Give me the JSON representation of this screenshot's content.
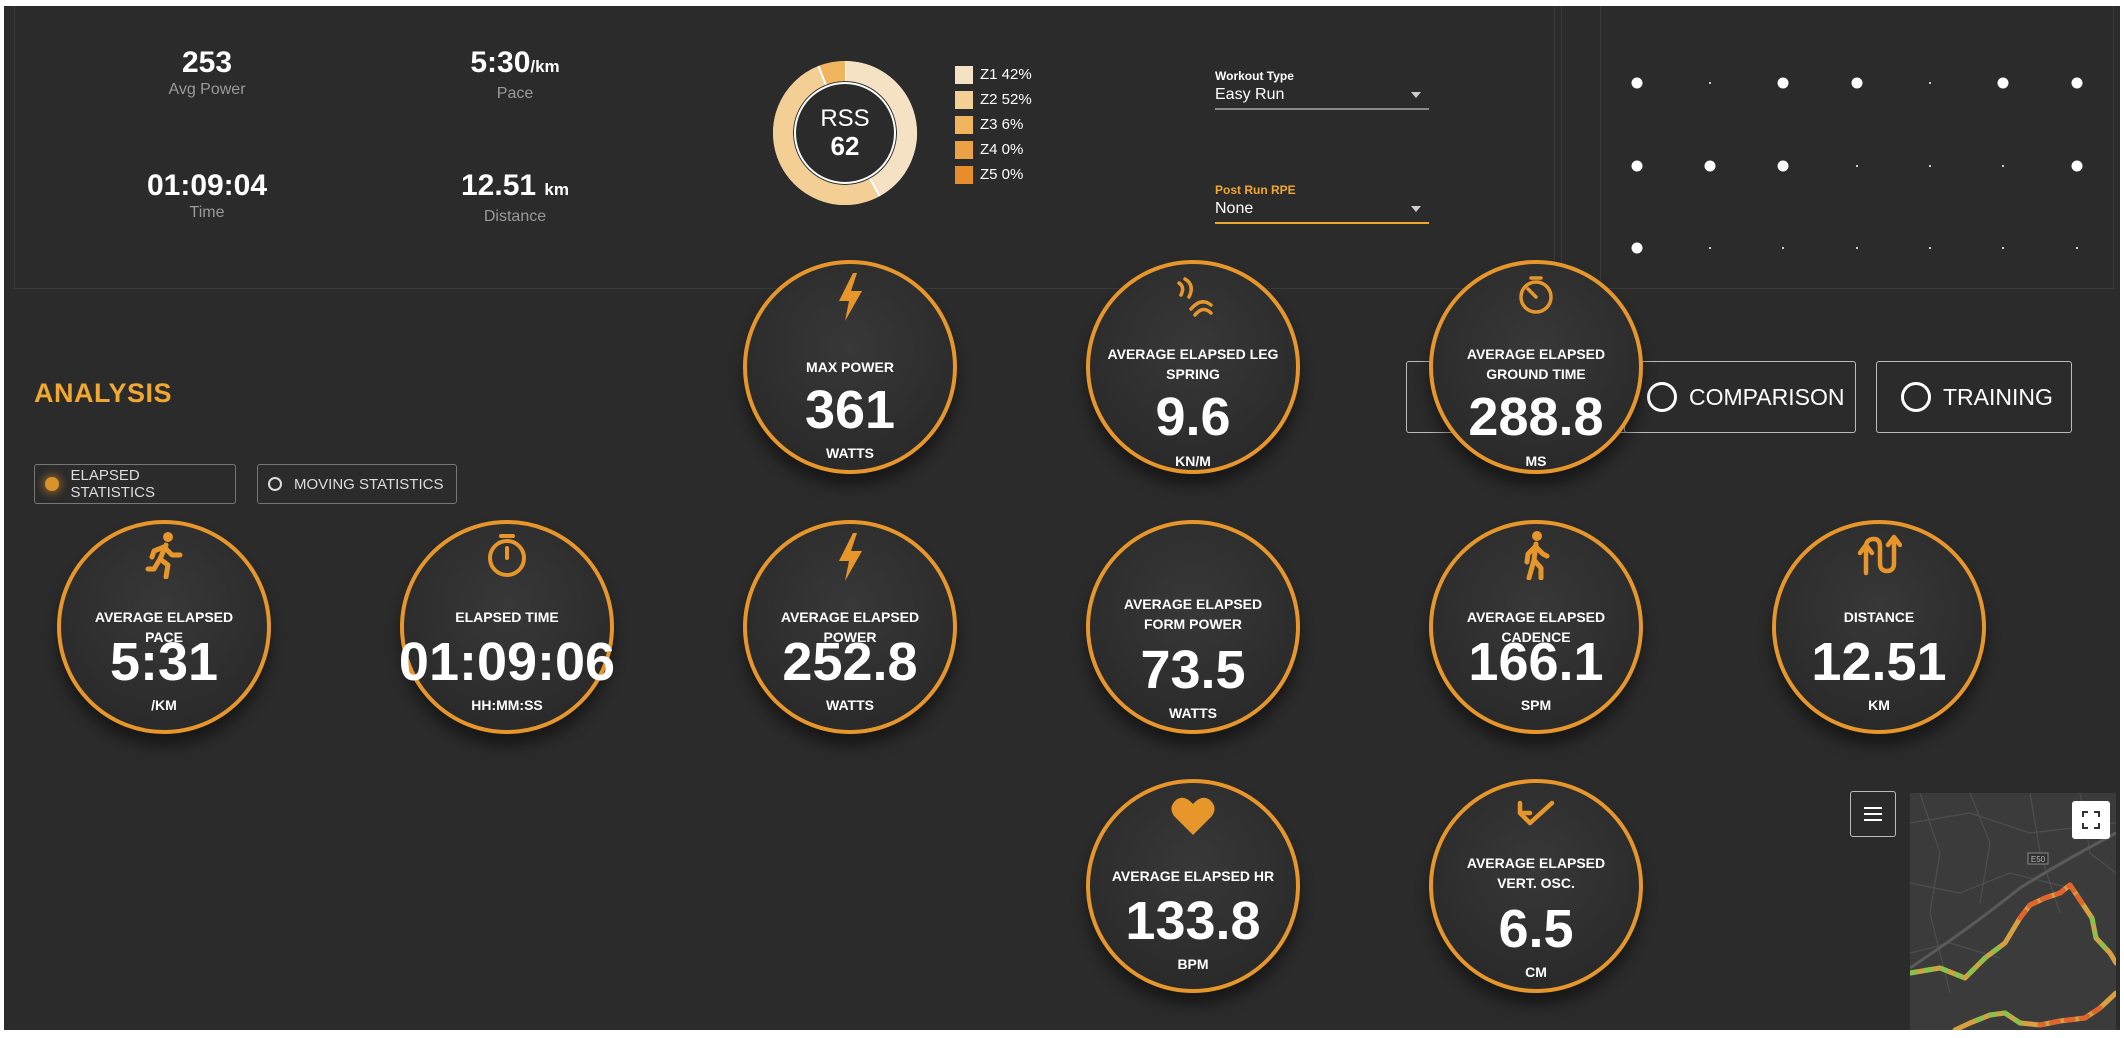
{
  "summary": {
    "avg_power": {
      "value": "253",
      "label": "Avg Power"
    },
    "pace": {
      "value": "5:30",
      "unit": "/km",
      "label": "Pace"
    },
    "time": {
      "value": "01:09:04",
      "label": "Time"
    },
    "distance": {
      "value": "12.51",
      "unit": "km",
      "label": "Distance"
    },
    "rss": {
      "label": "RSS",
      "value": "62"
    },
    "zones": [
      {
        "label": "Z1 42%",
        "percent": 42,
        "color": "#f5e1c4"
      },
      {
        "label": "Z2 52%",
        "percent": 52,
        "color": "#f3cf95"
      },
      {
        "label": "Z3 6%",
        "percent": 6,
        "color": "#f0b45c"
      },
      {
        "label": "Z4 0%",
        "percent": 0,
        "color": "#eca146"
      },
      {
        "label": "Z5 0%",
        "percent": 0,
        "color": "#e88c2c"
      }
    ],
    "workout_type": {
      "label": "Workout Type",
      "value": "Easy Run"
    },
    "post_run_rpe": {
      "label": "Post Run RPE",
      "value": "None"
    }
  },
  "analysis": {
    "title": "ANALYSIS",
    "elapsed_toggle": "ELAPSED STATISTICS",
    "moving_toggle": "MOVING STATISTICS",
    "comparison_button": "COMPARISON",
    "training_button": "TRAINING"
  },
  "metrics": {
    "max_power": {
      "label": "MAX POWER",
      "value": "361",
      "unit": "WATTS",
      "icon": "lightning-icon"
    },
    "leg_spring": {
      "label": "AVERAGE ELAPSED LEG SPRING",
      "value": "9.6",
      "unit": "KN/M",
      "icon": "spring-icon"
    },
    "ground_time": {
      "label": "AVERAGE ELAPSED GROUND TIME",
      "value": "288.8",
      "unit": "MS",
      "icon": "timer-icon"
    },
    "pace": {
      "label": "AVERAGE ELAPSED PACE",
      "value": "5:31",
      "unit": "/KM",
      "icon": "runner-icon"
    },
    "elapsed_time": {
      "label": "ELAPSED TIME",
      "value": "01:09:06",
      "unit": "HH:MM:SS",
      "icon": "stopwatch-icon"
    },
    "power": {
      "label": "AVERAGE ELAPSED POWER",
      "value": "252.8",
      "unit": "WATTS",
      "icon": "lightning-icon"
    },
    "form_power": {
      "label": "AVERAGE ELAPSED FORM POWER",
      "value": "73.5",
      "unit": "WATTS",
      "icon": ""
    },
    "cadence": {
      "label": "AVERAGE ELAPSED CADENCE",
      "value": "166.1",
      "unit": "SPM",
      "icon": "walker-icon"
    },
    "distance": {
      "label": "DISTANCE",
      "value": "12.51",
      "unit": "KM",
      "icon": "route-arrows-icon"
    },
    "hr": {
      "label": "AVERAGE ELAPSED HR",
      "value": "133.8",
      "unit": "BPM",
      "icon": "heart-icon"
    },
    "vert_osc": {
      "label": "AVERAGE ELAPSED VERT. OSC.",
      "value": "6.5",
      "unit": "CM",
      "icon": "bounce-arrow-icon"
    }
  },
  "map": {
    "road_label": "E50"
  },
  "colors": {
    "accent": "#f0a830",
    "ring": "#e6962a",
    "background": "#2b2b2b"
  }
}
